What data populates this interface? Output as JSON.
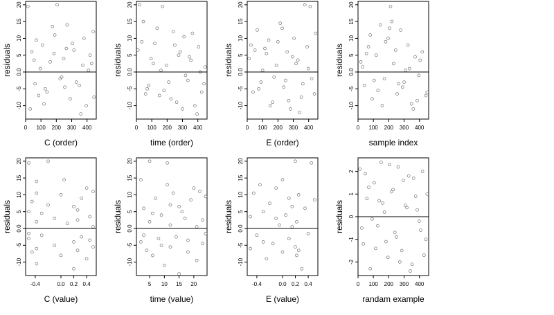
{
  "chart_data": [
    {
      "type": "scatter",
      "xlabel": "C (order)",
      "ylabel": "residuals",
      "xlim": [
        0,
        460
      ],
      "ylim": [
        -14,
        21
      ],
      "xticks": [
        0,
        100,
        200,
        300,
        400
      ],
      "xtick_labels": [
        "0",
        "100",
        "200",
        "300",
        "400"
      ],
      "yticks": [
        -10,
        -5,
        0,
        5,
        10,
        15,
        20
      ],
      "ytick_labels": [
        "-10",
        "-5",
        "0.0",
        "5",
        "10",
        "15",
        "20"
      ],
      "hline": 0,
      "points": {
        "x": [
          15,
          40,
          62,
          85,
          110,
          128,
          160,
          190,
          205,
          225,
          248,
          270,
          290,
          315,
          350,
          372,
          395,
          420,
          440,
          30,
          70,
          95,
          140,
          175,
          235,
          265,
          330,
          380,
          410,
          445,
          55,
          120,
          185,
          255,
          305,
          360,
          430
        ],
        "y": [
          19.5,
          6.0,
          -3.5,
          -7.0,
          8.0,
          -5.0,
          3.0,
          11.0,
          20.0,
          -2.0,
          4.0,
          14.0,
          -8.0,
          6.5,
          -4.0,
          2.0,
          -10.0,
          5.0,
          12.0,
          -11.0,
          9.5,
          1.0,
          -6.0,
          13.5,
          -1.5,
          7.0,
          -3.0,
          10.0,
          0.5,
          -7.5,
          3.5,
          -9.5,
          5.5,
          -4.5,
          8.5,
          -12.5,
          2.5
        ]
      }
    },
    {
      "type": "scatter",
      "xlabel": "time (order)",
      "ylabel": "residuals",
      "xlim": [
        0,
        460
      ],
      "ylim": [
        -14,
        21
      ],
      "xticks": [
        0,
        100,
        200,
        300,
        400
      ],
      "xtick_labels": [
        "0",
        "100",
        "200",
        "300",
        "400"
      ],
      "yticks": [
        -10,
        -5,
        0,
        5,
        10,
        15,
        20
      ],
      "ytick_labels": [
        "-10",
        "-5",
        "0.0",
        "5",
        "10",
        "15",
        "20"
      ],
      "hline": 0,
      "points": {
        "x": [
          20,
          45,
          70,
          95,
          120,
          150,
          170,
          195,
          210,
          240,
          262,
          285,
          310,
          335,
          355,
          380,
          405,
          425,
          448,
          35,
          80,
          135,
          160,
          225,
          275,
          320,
          365,
          395,
          440,
          10,
          60,
          110,
          180,
          250,
          300,
          345,
          415
        ],
        "y": [
          20.0,
          15.0,
          -5.0,
          4.0,
          8.5,
          -7.0,
          19.5,
          2.0,
          -3.0,
          12.0,
          -9.0,
          6.0,
          10.5,
          -2.5,
          3.5,
          -10.0,
          7.5,
          -6.0,
          1.5,
          9.0,
          -4.0,
          13.0,
          0.5,
          -8.0,
          5.0,
          -1.0,
          11.5,
          -12.5,
          -3.5,
          6.5,
          -6.5,
          2.5,
          -5.5,
          8.0,
          -11.0,
          4.5,
          0.0
        ]
      }
    },
    {
      "type": "scatter",
      "xlabel": "E (order)",
      "ylabel": "residuals",
      "xlim": [
        0,
        460
      ],
      "ylim": [
        -14,
        21
      ],
      "xticks": [
        0,
        100,
        200,
        300,
        400
      ],
      "xtick_labels": [
        "0",
        "100",
        "200",
        "300",
        "400"
      ],
      "yticks": [
        -10,
        -5,
        0,
        5,
        10,
        15,
        20
      ],
      "ytick_labels": [
        "-10",
        "-5",
        "0.0",
        "5",
        "10",
        "15",
        "20"
      ],
      "hline": 0,
      "points": {
        "x": [
          12,
          38,
          65,
          90,
          115,
          140,
          165,
          190,
          215,
          238,
          260,
          282,
          305,
          330,
          352,
          375,
          398,
          420,
          445,
          25,
          75,
          125,
          175,
          228,
          270,
          318,
          362,
          410,
          438,
          50,
          100,
          150,
          200,
          250,
          295,
          340,
          390
        ],
        "y": [
          4.0,
          -6.0,
          12.5,
          -3.0,
          7.0,
          9.5,
          -9.0,
          2.0,
          14.5,
          -4.5,
          6.0,
          -11.0,
          10.0,
          3.5,
          -7.5,
          20.0,
          1.0,
          -2.0,
          11.5,
          8.0,
          -5.0,
          5.5,
          -1.5,
          13.0,
          -8.5,
          2.5,
          -3.5,
          19.5,
          -6.5,
          6.5,
          0.5,
          -10.0,
          9.0,
          -2.5,
          4.5,
          -12.0,
          7.5
        ]
      }
    },
    {
      "type": "scatter",
      "xlabel": "sample index",
      "ylabel": "residuals",
      "xlim": [
        0,
        460
      ],
      "ylim": [
        -14,
        21
      ],
      "xticks": [
        0,
        100,
        200,
        300,
        400
      ],
      "xtick_labels": [
        "0",
        "100",
        "200",
        "300",
        "400"
      ],
      "yticks": [
        -10,
        -5,
        0,
        5,
        10,
        15,
        20
      ],
      "ytick_labels": [
        "-10",
        "-5",
        "0.0",
        "5",
        "10",
        "15",
        "20"
      ],
      "hline": 0,
      "points": {
        "x": [
          18,
          42,
          68,
          92,
          118,
          145,
          172,
          196,
          212,
          232,
          255,
          278,
          300,
          325,
          348,
          372,
          396,
          418,
          442,
          30,
          80,
          130,
          180,
          220,
          265,
          310,
          360,
          405,
          450,
          55,
          105,
          158,
          205,
          245,
          290,
          335,
          385
        ],
        "y": [
          3.0,
          -4.0,
          7.5,
          -8.0,
          5.0,
          14.0,
          -2.0,
          10.0,
          19.5,
          2.5,
          -6.5,
          12.5,
          -3.0,
          8.0,
          -9.5,
          4.5,
          -1.0,
          6.0,
          -7.0,
          1.5,
          11.0,
          -5.5,
          9.0,
          15.0,
          -3.5,
          0.5,
          -11.0,
          3.5,
          -6.0,
          5.5,
          -2.5,
          -10.0,
          13.0,
          6.5,
          -4.5,
          1.0,
          -8.5
        ]
      }
    },
    {
      "type": "scatter",
      "xlabel": "C (value)",
      "ylabel": "residuals",
      "xlim": [
        -0.55,
        0.55
      ],
      "ylim": [
        -14,
        21
      ],
      "xticks": [
        -0.4,
        0.0,
        0.2,
        0.4
      ],
      "xtick_labels": [
        "-0.4",
        "0.0",
        "0.2",
        "0.4"
      ],
      "yticks": [
        -10,
        -5,
        0,
        5,
        10,
        15,
        20
      ],
      "ytick_labels": [
        "-10",
        "-5",
        "0.0",
        "5",
        "10",
        "15",
        "20"
      ],
      "hline": 0,
      "points": {
        "x": [
          -0.5,
          -0.5,
          -0.5,
          -0.45,
          -0.45,
          -0.38,
          -0.38,
          -0.38,
          -0.38,
          -0.3,
          -0.3,
          -0.2,
          -0.2,
          -0.1,
          -0.1,
          0.0,
          0.0,
          0.05,
          0.1,
          0.2,
          0.2,
          0.2,
          0.26,
          0.26,
          0.32,
          0.32,
          0.4,
          0.4,
          0.45,
          0.5,
          0.5,
          0.5,
          -0.5,
          -0.38,
          0.26,
          0.45
        ],
        "y": [
          19.5,
          5.0,
          -3.0,
          8.0,
          -7.0,
          14.0,
          -6.0,
          2.0,
          -10.5,
          4.5,
          -2.0,
          20.0,
          7.0,
          -5.0,
          3.0,
          10.0,
          -8.0,
          14.5,
          1.5,
          -4.0,
          6.5,
          -12.0,
          2.5,
          -6.5,
          9.0,
          -2.5,
          12.0,
          -9.0,
          3.5,
          11.0,
          -5.5,
          0.5,
          -1.5,
          10.5,
          5.5,
          -3.5
        ]
      }
    },
    {
      "type": "scatter",
      "xlabel": "time (value)",
      "ylabel": "residuals",
      "xlim": [
        0.5,
        24.5
      ],
      "ylim": [
        -14,
        21
      ],
      "xticks": [
        5,
        10,
        15,
        20
      ],
      "xtick_labels": [
        "5",
        "10",
        "15",
        "20"
      ],
      "yticks": [
        -10,
        -5,
        0,
        5,
        10,
        15,
        20
      ],
      "ytick_labels": [
        "-10",
        "-5",
        "0.0",
        "5",
        "10",
        "15",
        "20"
      ],
      "hline": 0,
      "points": {
        "x": [
          2,
          2,
          3,
          4,
          5,
          5,
          6,
          7,
          8,
          9,
          10,
          11,
          12,
          12,
          12,
          13,
          14,
          15,
          16,
          17,
          18,
          19,
          20,
          21,
          22,
          23,
          23,
          24,
          24,
          3,
          6,
          9,
          15,
          18,
          21,
          11
        ],
        "y": [
          14.5,
          -4.0,
          6.0,
          -6.5,
          20.0,
          2.0,
          -8.0,
          9.0,
          -3.0,
          4.0,
          -11.0,
          19.5,
          7.0,
          -5.5,
          1.0,
          10.5,
          -2.5,
          -13.5,
          5.0,
          3.0,
          -7.0,
          8.5,
          12.0,
          -9.5,
          11.0,
          2.5,
          -4.5,
          9.5,
          -1.5,
          -2.0,
          4.5,
          -5.0,
          6.5,
          -3.5,
          0.5,
          13.0
        ]
      }
    },
    {
      "type": "scatter",
      "xlabel": "E (value)",
      "ylabel": "residuals",
      "xlim": [
        -0.55,
        0.55
      ],
      "ylim": [
        -14,
        21
      ],
      "xticks": [
        -0.4,
        0.0,
        0.2,
        0.4
      ],
      "xtick_labels": [
        "-0.4",
        "0.0",
        "0.2",
        "0.4"
      ],
      "yticks": [
        -10,
        -5,
        0,
        5,
        10,
        15,
        20
      ],
      "ytick_labels": [
        "-10",
        "-5",
        "0.0",
        "5",
        "10",
        "15",
        "20"
      ],
      "hline": 0,
      "points": {
        "x": [
          -0.5,
          -0.5,
          -0.45,
          -0.4,
          -0.35,
          -0.3,
          -0.25,
          -0.2,
          -0.15,
          -0.1,
          -0.05,
          0.0,
          0.0,
          0.05,
          0.1,
          0.1,
          0.15,
          0.2,
          0.2,
          0.22,
          0.22,
          0.25,
          0.3,
          0.35,
          0.4,
          0.45,
          0.5,
          -0.3,
          -0.1,
          0.15,
          0.25
        ],
        "y": [
          3.5,
          -6.0,
          10.5,
          -2.0,
          13.0,
          5.0,
          -9.0,
          7.5,
          -4.5,
          12.0,
          1.0,
          14.5,
          -7.0,
          4.0,
          9.0,
          -3.0,
          6.5,
          20.0,
          -5.5,
          2.0,
          -8.0,
          10.0,
          -12.0,
          6.0,
          -1.5,
          19.5,
          8.5,
          -4.0,
          3.0,
          0.5,
          -6.5
        ]
      }
    },
    {
      "type": "scatter",
      "xlabel": "randam example",
      "ylabel": "residuals",
      "xlim": [
        0,
        460
      ],
      "ylim": [
        -2.6,
        2.6
      ],
      "xticks": [
        0,
        100,
        200,
        300,
        400
      ],
      "xtick_labels": [
        "0",
        "100",
        "200",
        "300",
        "400"
      ],
      "yticks": [
        -2,
        -1,
        0,
        1,
        2
      ],
      "ytick_labels": [
        "-2",
        "-1",
        "0",
        "1",
        "2"
      ],
      "hline": 0,
      "points": {
        "x": [
          12,
          35,
          58,
          80,
          105,
          128,
          150,
          172,
          195,
          218,
          240,
          262,
          285,
          308,
          330,
          352,
          375,
          398,
          420,
          442,
          25,
          70,
          115,
          160,
          205,
          250,
          295,
          340,
          385,
          430,
          48,
          92,
          138,
          182,
          228,
          272,
          318,
          362,
          408,
          450
        ],
        "y": [
          2.1,
          -1.2,
          0.8,
          -2.3,
          1.5,
          -0.4,
          2.4,
          0.2,
          -1.8,
          1.1,
          -0.7,
          2.2,
          -1.5,
          0.5,
          1.8,
          -2.1,
          0.9,
          -0.2,
          2.0,
          -1.0,
          -0.5,
          1.3,
          -1.4,
          0.6,
          2.3,
          -0.9,
          1.6,
          -2.4,
          0.3,
          -1.7,
          1.9,
          -0.1,
          0.7,
          -1.1,
          1.2,
          -2.0,
          0.4,
          1.7,
          -0.6,
          1.0
        ]
      }
    }
  ]
}
